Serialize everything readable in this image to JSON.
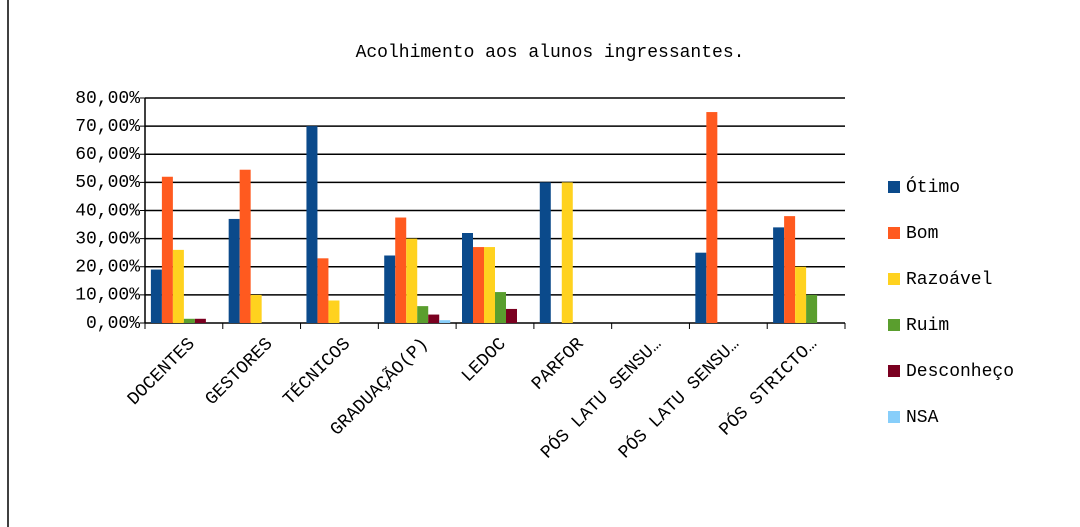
{
  "chart_data": {
    "type": "bar",
    "title": "Acolhimento  aos alunos ingressantes.",
    "categories": [
      "DOCENTES",
      "GESTORES",
      "TÉCNICOS",
      "GRADUAÇÃO(P)",
      "LEDOC",
      "PARFOR",
      "PÓS LATU SENSU…",
      "PÓS LATU SENSU…",
      "PÓS STRICTO…"
    ],
    "series": [
      {
        "name": "Ótimo",
        "color": "#0b4a8b",
        "values": [
          19,
          37,
          70,
          24,
          32,
          50,
          0,
          25,
          34
        ]
      },
      {
        "name": "Bom",
        "color": "#ff5a1f",
        "values": [
          52,
          54.5,
          23,
          37.5,
          27,
          0,
          0,
          75,
          38
        ]
      },
      {
        "name": "Razoável",
        "color": "#ffd21f",
        "values": [
          26,
          10,
          8,
          30,
          27,
          50,
          0,
          0,
          20
        ]
      },
      {
        "name": "Ruim",
        "color": "#5a9e2e",
        "values": [
          1.5,
          0,
          0,
          6,
          11,
          0,
          0,
          0,
          10
        ]
      },
      {
        "name": "Desconheço",
        "color": "#7a0020",
        "values": [
          1.5,
          0,
          0,
          3,
          5,
          0,
          0,
          0,
          0
        ]
      },
      {
        "name": "NSA",
        "color": "#87cefa",
        "values": [
          0,
          0,
          0,
          1,
          0,
          0,
          0,
          0,
          0
        ]
      }
    ],
    "ylim": [
      0,
      80
    ],
    "yticks": [
      {
        "value": 0,
        "label": "0,00%"
      },
      {
        "value": 10,
        "label": "10,00%"
      },
      {
        "value": 20,
        "label": "20,00%"
      },
      {
        "value": 30,
        "label": "30,00%"
      },
      {
        "value": 40,
        "label": "40,00%"
      },
      {
        "value": 50,
        "label": "50,00%"
      },
      {
        "value": 60,
        "label": "60,00%"
      },
      {
        "value": 70,
        "label": "70,00%"
      },
      {
        "value": 80,
        "label": "80,00%"
      }
    ],
    "grid": true,
    "legend": "right"
  }
}
